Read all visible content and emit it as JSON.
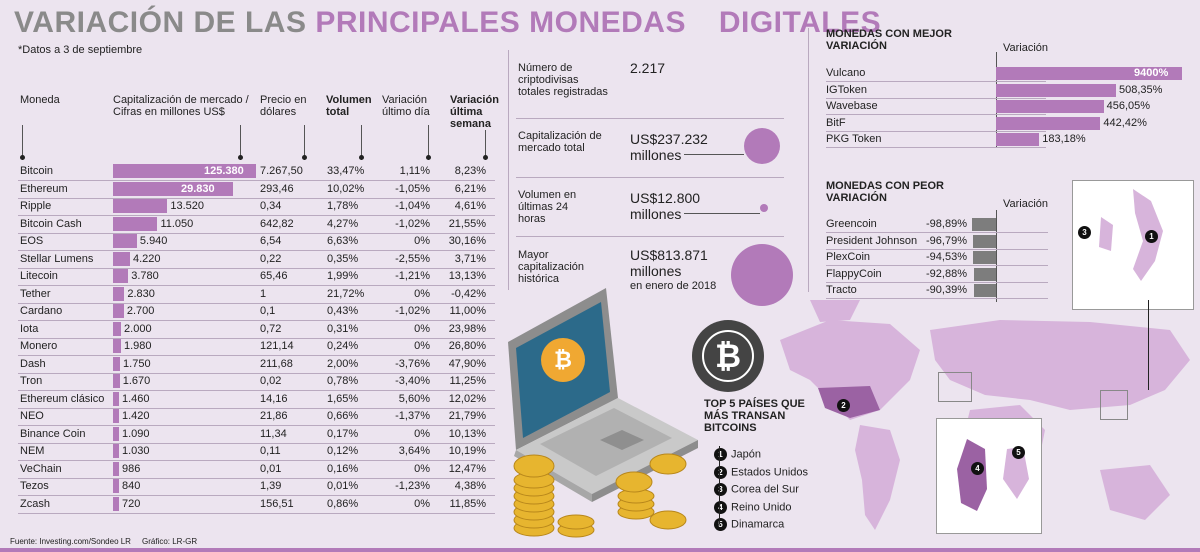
{
  "header": {
    "title_part1": "VARIACIÓN DE LAS",
    "title_part2": "PRINCIPALES MONEDAS",
    "title_part3": "DIGITALES",
    "subtitle": "*Datos a 3 de septiembre"
  },
  "table": {
    "columns": [
      "Moneda",
      "Capitalización de mercado / Cifras en millones US$",
      "Precio en dólares",
      "Volumen total",
      "Variación último día",
      "Variación última semana"
    ],
    "rows": [
      {
        "name": "Bitcoin",
        "cap": "125.380",
        "cap_value": 125380,
        "price": "7.267,50",
        "volume": "33,47%",
        "day": "1,11%",
        "week": "8,23%"
      },
      {
        "name": "Ethereum",
        "cap": "29.830",
        "cap_value": 29830,
        "price": "293,46",
        "volume": "10,02%",
        "day": "-1,05%",
        "week": "6,21%"
      },
      {
        "name": "Ripple",
        "cap": "13.520",
        "cap_value": 13520,
        "price": "0,34",
        "volume": "1,78%",
        "day": "-1,04%",
        "week": "4,61%"
      },
      {
        "name": "Bitcoin Cash",
        "cap": "11.050",
        "cap_value": 11050,
        "price": "642,82",
        "volume": "4,27%",
        "day": "-1,02%",
        "week": "21,55%"
      },
      {
        "name": "EOS",
        "cap": "5.940",
        "cap_value": 5940,
        "price": "6,54",
        "volume": "6,63%",
        "day": "0%",
        "week": "30,16%"
      },
      {
        "name": "Stellar Lumens",
        "cap": "4.220",
        "cap_value": 4220,
        "price": "0,22",
        "volume": "0,35%",
        "day": "-2,55%",
        "week": "3,71%"
      },
      {
        "name": "Litecoin",
        "cap": "3.780",
        "cap_value": 3780,
        "price": "65,46",
        "volume": "1,99%",
        "day": "-1,21%",
        "week": "13,13%"
      },
      {
        "name": "Tether",
        "cap": "2.830",
        "cap_value": 2830,
        "price": "1",
        "volume": "21,72%",
        "day": "0%",
        "week": "-0,42%"
      },
      {
        "name": "Cardano",
        "cap": "2.700",
        "cap_value": 2700,
        "price": "0,1",
        "volume": "0,43%",
        "day": "-1,02%",
        "week": "11,00%"
      },
      {
        "name": "Iota",
        "cap": "2.000",
        "cap_value": 2000,
        "price": "0,72",
        "volume": "0,31%",
        "day": "0%",
        "week": "23,98%"
      },
      {
        "name": "Monero",
        "cap": "1.980",
        "cap_value": 1980,
        "price": "121,14",
        "volume": "0,24%",
        "day": "0%",
        "week": "26,80%"
      },
      {
        "name": "Dash",
        "cap": "1.750",
        "cap_value": 1750,
        "price": "211,68",
        "volume": "2,00%",
        "day": "-3,76%",
        "week": "47,90%"
      },
      {
        "name": "Tron",
        "cap": "1.670",
        "cap_value": 1670,
        "price": "0,02",
        "volume": "0,78%",
        "day": "-3,40%",
        "week": "11,25%"
      },
      {
        "name": "Ethereum clásico",
        "cap": "1.460",
        "cap_value": 1460,
        "price": "14,16",
        "volume": "1,65%",
        "day": "5,60%",
        "week": "12,02%"
      },
      {
        "name": "NEO",
        "cap": "1.420",
        "cap_value": 1420,
        "price": "21,86",
        "volume": "0,66%",
        "day": "-1,37%",
        "week": "21,79%"
      },
      {
        "name": "Binance Coin",
        "cap": "1.090",
        "cap_value": 1090,
        "price": "11,34",
        "volume": "0,17%",
        "day": "0%",
        "week": "10,13%"
      },
      {
        "name": "NEM",
        "cap": "1.030",
        "cap_value": 1030,
        "price": "0,11",
        "volume": "0,12%",
        "day": "3,64%",
        "week": "10,19%"
      },
      {
        "name": "VeChain",
        "cap": "986",
        "cap_value": 986,
        "price": "0,01",
        "volume": "0,16%",
        "day": "0%",
        "week": "12,47%"
      },
      {
        "name": "Tezos",
        "cap": "840",
        "cap_value": 840,
        "price": "1,39",
        "volume": "0,01%",
        "day": "-1,23%",
        "week": "4,38%"
      },
      {
        "name": "Zcash",
        "cap": "720",
        "cap_value": 720,
        "price": "156,51",
        "volume": "0,86%",
        "day": "0%",
        "week": "11,85%"
      }
    ]
  },
  "stats": [
    {
      "label": "Número de criptodivisas totales registradas",
      "value": "2.217",
      "value2": "",
      "note": ""
    },
    {
      "label": "Capitalización de mercado total",
      "value": "US$237.232",
      "value2": "millones",
      "note": ""
    },
    {
      "label": "Volumen en últimas 24 horas",
      "value": "US$12.800",
      "value2": "millones",
      "note": ""
    },
    {
      "label": "Mayor capitalización histórica",
      "value": "US$813.871",
      "value2": "millones",
      "note": "en enero de 2018"
    }
  ],
  "best": {
    "title": "MONEDAS CON MEJOR VARIACIÓN",
    "col": "Variación",
    "items": [
      {
        "name": "Vulcano",
        "label": "9400%",
        "value": 9400
      },
      {
        "name": "IGToken",
        "label": "508,35%",
        "value": 508.35
      },
      {
        "name": "Wavebase",
        "label": "456,05%",
        "value": 456.05
      },
      {
        "name": "BitF",
        "label": "442,42%",
        "value": 442.42
      },
      {
        "name": "PKG Token",
        "label": "183,18%",
        "value": 183.18
      }
    ]
  },
  "worst": {
    "title": "MONEDAS CON PEOR VARIACIÓN",
    "col": "Variación",
    "items": [
      {
        "name": "Greencoin",
        "label": "-98,89%",
        "value": -98.89
      },
      {
        "name": "President Johnson",
        "label": "-96,79%",
        "value": -96.79
      },
      {
        "name": "PlexCoin",
        "label": "-94,53%",
        "value": -94.53
      },
      {
        "name": "FlappyCoin",
        "label": "-92,88%",
        "value": -92.88
      },
      {
        "name": "Tracto",
        "label": "-90,39%",
        "value": -90.39
      }
    ]
  },
  "top5": {
    "title": "TOP 5 PAÍSES QUE MÁS TRANSAN BITCOINS",
    "countries": [
      {
        "n": "1",
        "name": "Japón"
      },
      {
        "n": "2",
        "name": "Estados Unidos"
      },
      {
        "n": "3",
        "name": "Corea del Sur"
      },
      {
        "n": "4",
        "name": "Reino Unido"
      },
      {
        "n": "5",
        "name": "Dinamarca"
      }
    ]
  },
  "footer": {
    "source": "Fuente: Investing.com/Sondeo LR",
    "graphic": "Gráfico: LR-GR"
  },
  "colors": {
    "accent": "#b27ab9",
    "grey": "#8a8a8a",
    "negative": "#7d7d7d",
    "map": "#d7b4db",
    "map_dark": "#9b62a3",
    "bg": "#ece4ef"
  },
  "chart_data": [
    {
      "type": "bar",
      "title": "Capitalización de mercado / Cifras en millones US$",
      "categories": [
        "Bitcoin",
        "Ethereum",
        "Ripple",
        "Bitcoin Cash",
        "EOS",
        "Stellar Lumens",
        "Litecoin",
        "Tether",
        "Cardano",
        "Iota",
        "Monero",
        "Dash",
        "Tron",
        "Ethereum clásico",
        "NEO",
        "Binance Coin",
        "NEM",
        "VeChain",
        "Tezos",
        "Zcash"
      ],
      "values": [
        125380,
        29830,
        13520,
        11050,
        5940,
        4220,
        3780,
        2830,
        2700,
        2000,
        1980,
        1750,
        1670,
        1460,
        1420,
        1090,
        1030,
        986,
        840,
        720
      ]
    },
    {
      "type": "bar",
      "title": "MONEDAS CON MEJOR VARIACIÓN",
      "categories": [
        "Vulcano",
        "IGToken",
        "Wavebase",
        "BitF",
        "PKG Token"
      ],
      "values": [
        9400,
        508.35,
        456.05,
        442.42,
        183.18
      ]
    },
    {
      "type": "bar",
      "title": "MONEDAS CON PEOR VARIACIÓN",
      "categories": [
        "Greencoin",
        "President Johnson",
        "PlexCoin",
        "FlappyCoin",
        "Tracto"
      ],
      "values": [
        -98.89,
        -96.79,
        -94.53,
        -92.88,
        -90.39
      ]
    }
  ]
}
